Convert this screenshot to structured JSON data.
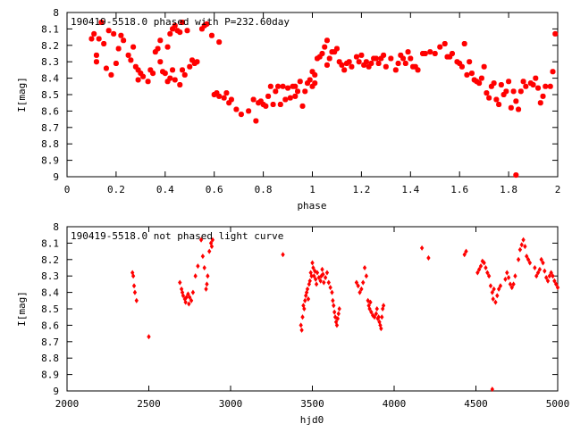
{
  "chart_data": [
    {
      "type": "scatter",
      "title": "190419-5518.0 phased with P=232.60day",
      "xlabel": "phase",
      "ylabel": "I[mag]",
      "xlim": [
        0,
        2
      ],
      "ylim": [
        9,
        8
      ],
      "y_inverted": true,
      "grid": false,
      "marker_color": "#ff0000",
      "x_ticks": [
        0,
        0.2,
        0.4,
        0.6,
        0.8,
        1,
        1.2,
        1.4,
        1.6,
        1.8,
        2
      ],
      "x_tick_labels": [
        "0",
        "0.2",
        "0.4",
        "0.6",
        "0.8",
        "1",
        "1.2",
        "1.4",
        "1.6",
        "1.8",
        "2"
      ],
      "y_ticks": [
        8,
        8.1,
        8.2,
        8.3,
        8.4,
        8.5,
        8.6,
        8.7,
        8.8,
        8.9,
        9
      ],
      "y_tick_labels": [
        "8",
        "8.1",
        "8.2",
        "8.3",
        "8.4",
        "8.5",
        "8.6",
        "8.7",
        "8.8",
        "8.9",
        "9"
      ],
      "points": [
        [
          0.1,
          8.16
        ],
        [
          0.11,
          8.13
        ],
        [
          0.12,
          8.26
        ],
        [
          0.12,
          8.3
        ],
        [
          0.13,
          8.16
        ],
        [
          0.14,
          8.06
        ],
        [
          0.15,
          8.19
        ],
        [
          0.16,
          8.34
        ],
        [
          0.17,
          8.11
        ],
        [
          0.18,
          8.38
        ],
        [
          0.19,
          8.13
        ],
        [
          0.2,
          8.31
        ],
        [
          0.21,
          8.22
        ],
        [
          0.22,
          8.14
        ],
        [
          0.23,
          8.17
        ],
        [
          0.25,
          8.26
        ],
        [
          0.26,
          8.29
        ],
        [
          0.27,
          8.21
        ],
        [
          0.28,
          8.33
        ],
        [
          0.29,
          8.35
        ],
        [
          0.29,
          8.41
        ],
        [
          0.3,
          8.37
        ],
        [
          0.31,
          8.39
        ],
        [
          0.33,
          8.42
        ],
        [
          0.34,
          8.35
        ],
        [
          0.35,
          8.37
        ],
        [
          0.36,
          8.24
        ],
        [
          0.37,
          8.22
        ],
        [
          0.38,
          8.17
        ],
        [
          0.38,
          8.3
        ],
        [
          0.39,
          8.36
        ],
        [
          0.4,
          8.37
        ],
        [
          0.41,
          8.42
        ],
        [
          0.41,
          8.21
        ],
        [
          0.42,
          8.13
        ],
        [
          0.42,
          8.4
        ],
        [
          0.43,
          8.1
        ],
        [
          0.43,
          8.35
        ],
        [
          0.44,
          8.08
        ],
        [
          0.44,
          8.41
        ],
        [
          0.45,
          8.11
        ],
        [
          0.46,
          8.44
        ],
        [
          0.46,
          8.12
        ],
        [
          0.47,
          8.35
        ],
        [
          0.47,
          8.06
        ],
        [
          0.48,
          8.38
        ],
        [
          0.49,
          8.11
        ],
        [
          0.5,
          8.33
        ],
        [
          0.51,
          8.29
        ],
        [
          0.52,
          8.31
        ],
        [
          0.53,
          8.3
        ],
        [
          0.55,
          8.1
        ],
        [
          0.56,
          8.08
        ],
        [
          0.57,
          8.07
        ],
        [
          0.59,
          8.14
        ],
        [
          0.6,
          8.5
        ],
        [
          0.61,
          8.49
        ],
        [
          0.62,
          8.51
        ],
        [
          0.62,
          8.18
        ],
        [
          0.64,
          8.52
        ],
        [
          0.65,
          8.49
        ],
        [
          0.66,
          8.55
        ],
        [
          0.67,
          8.53
        ],
        [
          0.69,
          8.59
        ],
        [
          0.71,
          8.62
        ],
        [
          0.74,
          8.6
        ],
        [
          0.76,
          8.53
        ],
        [
          0.77,
          8.66
        ],
        [
          0.78,
          8.55
        ],
        [
          0.79,
          8.54
        ],
        [
          0.8,
          8.56
        ],
        [
          0.81,
          8.57
        ],
        [
          0.82,
          8.51
        ],
        [
          0.83,
          8.45
        ],
        [
          0.84,
          8.56
        ],
        [
          0.85,
          8.48
        ],
        [
          0.86,
          8.45
        ],
        [
          0.87,
          8.56
        ],
        [
          0.88,
          8.45
        ],
        [
          0.89,
          8.53
        ],
        [
          0.9,
          8.46
        ],
        [
          0.91,
          8.52
        ],
        [
          0.92,
          8.45
        ],
        [
          0.93,
          8.45
        ],
        [
          0.93,
          8.51
        ],
        [
          0.94,
          8.48
        ],
        [
          0.95,
          8.42
        ],
        [
          0.96,
          8.57
        ],
        [
          0.97,
          8.48
        ],
        [
          0.98,
          8.43
        ],
        [
          0.99,
          8.41
        ],
        [
          1.0,
          8.36
        ],
        [
          1.0,
          8.45
        ],
        [
          1.01,
          8.43
        ],
        [
          1.01,
          8.38
        ],
        [
          1.02,
          8.28
        ],
        [
          1.03,
          8.27
        ],
        [
          1.04,
          8.25
        ],
        [
          1.05,
          8.21
        ],
        [
          1.06,
          8.17
        ],
        [
          1.06,
          8.32
        ],
        [
          1.07,
          8.28
        ],
        [
          1.08,
          8.24
        ],
        [
          1.09,
          8.24
        ],
        [
          1.1,
          8.22
        ],
        [
          1.11,
          8.3
        ],
        [
          1.12,
          8.32
        ],
        [
          1.13,
          8.35
        ],
        [
          1.14,
          8.31
        ],
        [
          1.15,
          8.3
        ],
        [
          1.16,
          8.33
        ],
        [
          1.18,
          8.27
        ],
        [
          1.19,
          8.3
        ],
        [
          1.2,
          8.26
        ],
        [
          1.21,
          8.32
        ],
        [
          1.22,
          8.3
        ],
        [
          1.23,
          8.33
        ],
        [
          1.24,
          8.31
        ],
        [
          1.25,
          8.28
        ],
        [
          1.26,
          8.28
        ],
        [
          1.27,
          8.31
        ],
        [
          1.28,
          8.28
        ],
        [
          1.29,
          8.26
        ],
        [
          1.3,
          8.33
        ],
        [
          1.32,
          8.28
        ],
        [
          1.34,
          8.35
        ],
        [
          1.35,
          8.31
        ],
        [
          1.36,
          8.26
        ],
        [
          1.37,
          8.28
        ],
        [
          1.38,
          8.31
        ],
        [
          1.39,
          8.24
        ],
        [
          1.4,
          8.28
        ],
        [
          1.41,
          8.33
        ],
        [
          1.42,
          8.33
        ],
        [
          1.43,
          8.35
        ],
        [
          1.45,
          8.25
        ],
        [
          1.46,
          8.25
        ],
        [
          1.48,
          8.24
        ],
        [
          1.5,
          8.25
        ],
        [
          1.52,
          8.21
        ],
        [
          1.54,
          8.19
        ],
        [
          1.55,
          8.27
        ],
        [
          1.56,
          8.27
        ],
        [
          1.57,
          8.25
        ],
        [
          1.59,
          8.3
        ],
        [
          1.6,
          8.31
        ],
        [
          1.61,
          8.33
        ],
        [
          1.62,
          8.19
        ],
        [
          1.63,
          8.38
        ],
        [
          1.64,
          8.3
        ],
        [
          1.65,
          8.37
        ],
        [
          1.66,
          8.41
        ],
        [
          1.67,
          8.42
        ],
        [
          1.68,
          8.43
        ],
        [
          1.69,
          8.4
        ],
        [
          1.7,
          8.33
        ],
        [
          1.71,
          8.49
        ],
        [
          1.72,
          8.52
        ],
        [
          1.73,
          8.45
        ],
        [
          1.74,
          8.43
        ],
        [
          1.75,
          8.53
        ],
        [
          1.76,
          8.56
        ],
        [
          1.77,
          8.44
        ],
        [
          1.78,
          8.5
        ],
        [
          1.79,
          8.48
        ],
        [
          1.8,
          8.42
        ],
        [
          1.81,
          8.58
        ],
        [
          1.82,
          8.48
        ],
        [
          1.83,
          8.54
        ],
        [
          1.84,
          8.59
        ],
        [
          1.85,
          8.48
        ],
        [
          1.86,
          8.42
        ],
        [
          1.87,
          8.45
        ],
        [
          1.89,
          8.43
        ],
        [
          1.9,
          8.44
        ],
        [
          1.91,
          8.4
        ],
        [
          1.92,
          8.46
        ],
        [
          1.93,
          8.55
        ],
        [
          1.94,
          8.51
        ],
        [
          1.95,
          8.45
        ],
        [
          1.97,
          8.45
        ],
        [
          1.98,
          8.36
        ],
        [
          1.99,
          8.13
        ],
        [
          1.83,
          8.99
        ]
      ]
    },
    {
      "type": "scatter",
      "title": "190419-5518.0 not phased light curve",
      "xlabel": "hjd0",
      "ylabel": "I[mag]",
      "xlim": [
        2000,
        5000
      ],
      "ylim": [
        9,
        8
      ],
      "y_inverted": true,
      "grid": false,
      "marker_color": "#ff0000",
      "x_ticks": [
        2000,
        2500,
        3000,
        3500,
        4000,
        4500,
        5000
      ],
      "x_tick_labels": [
        "2000",
        "2500",
        "3000",
        "3500",
        "4000",
        "4500",
        "5000"
      ],
      "y_ticks": [
        8,
        8.1,
        8.2,
        8.3,
        8.4,
        8.5,
        8.6,
        8.7,
        8.8,
        8.9,
        9
      ],
      "y_tick_labels": [
        "8",
        "8.1",
        "8.2",
        "8.3",
        "8.4",
        "8.5",
        "8.6",
        "8.7",
        "8.8",
        "8.9",
        "9"
      ],
      "points": [
        [
          2400,
          8.28
        ],
        [
          2405,
          8.3
        ],
        [
          2410,
          8.36
        ],
        [
          2415,
          8.4
        ],
        [
          2425,
          8.45
        ],
        [
          2500,
          8.67
        ],
        [
          2690,
          8.34
        ],
        [
          2700,
          8.38
        ],
        [
          2705,
          8.4
        ],
        [
          2710,
          8.42
        ],
        [
          2720,
          8.44
        ],
        [
          2725,
          8.46
        ],
        [
          2730,
          8.43
        ],
        [
          2740,
          8.41
        ],
        [
          2745,
          8.47
        ],
        [
          2750,
          8.43
        ],
        [
          2760,
          8.45
        ],
        [
          2770,
          8.4
        ],
        [
          2785,
          8.3
        ],
        [
          2800,
          8.24
        ],
        [
          2820,
          8.08
        ],
        [
          2830,
          8.18
        ],
        [
          2840,
          8.25
        ],
        [
          2850,
          8.38
        ],
        [
          2855,
          8.35
        ],
        [
          2860,
          8.3
        ],
        [
          2870,
          8.15
        ],
        [
          2880,
          8.1
        ],
        [
          2885,
          8.12
        ],
        [
          2890,
          8.08
        ],
        [
          3320,
          8.17
        ],
        [
          3430,
          8.6
        ],
        [
          3435,
          8.63
        ],
        [
          3440,
          8.55
        ],
        [
          3445,
          8.48
        ],
        [
          3450,
          8.5
        ],
        [
          3455,
          8.45
        ],
        [
          3460,
          8.42
        ],
        [
          3465,
          8.4
        ],
        [
          3470,
          8.38
        ],
        [
          3475,
          8.44
        ],
        [
          3480,
          8.35
        ],
        [
          3485,
          8.33
        ],
        [
          3490,
          8.28
        ],
        [
          3495,
          8.3
        ],
        [
          3500,
          8.22
        ],
        [
          3505,
          8.25
        ],
        [
          3510,
          8.3
        ],
        [
          3515,
          8.27
        ],
        [
          3520,
          8.32
        ],
        [
          3525,
          8.35
        ],
        [
          3530,
          8.28
        ],
        [
          3540,
          8.31
        ],
        [
          3550,
          8.33
        ],
        [
          3555,
          8.3
        ],
        [
          3560,
          8.26
        ],
        [
          3565,
          8.29
        ],
        [
          3570,
          8.34
        ],
        [
          3580,
          8.31
        ],
        [
          3590,
          8.28
        ],
        [
          3600,
          8.34
        ],
        [
          3610,
          8.37
        ],
        [
          3620,
          8.4
        ],
        [
          3625,
          8.45
        ],
        [
          3630,
          8.48
        ],
        [
          3635,
          8.52
        ],
        [
          3640,
          8.55
        ],
        [
          3645,
          8.58
        ],
        [
          3650,
          8.6
        ],
        [
          3655,
          8.56
        ],
        [
          3660,
          8.53
        ],
        [
          3665,
          8.5
        ],
        [
          3770,
          8.34
        ],
        [
          3780,
          8.36
        ],
        [
          3790,
          8.4
        ],
        [
          3800,
          8.38
        ],
        [
          3810,
          8.34
        ],
        [
          3820,
          8.25
        ],
        [
          3830,
          8.3
        ],
        [
          3840,
          8.45
        ],
        [
          3845,
          8.48
        ],
        [
          3850,
          8.5
        ],
        [
          3855,
          8.46
        ],
        [
          3860,
          8.52
        ],
        [
          3870,
          8.54
        ],
        [
          3880,
          8.55
        ],
        [
          3890,
          8.53
        ],
        [
          3895,
          8.5
        ],
        [
          3900,
          8.56
        ],
        [
          3905,
          8.55
        ],
        [
          3910,
          8.58
        ],
        [
          3915,
          8.6
        ],
        [
          3920,
          8.62
        ],
        [
          3925,
          8.55
        ],
        [
          3930,
          8.5
        ],
        [
          3935,
          8.48
        ],
        [
          4170,
          8.13
        ],
        [
          4210,
          8.19
        ],
        [
          4430,
          8.17
        ],
        [
          4440,
          8.15
        ],
        [
          4510,
          8.28
        ],
        [
          4520,
          8.26
        ],
        [
          4530,
          8.24
        ],
        [
          4540,
          8.21
        ],
        [
          4550,
          8.22
        ],
        [
          4560,
          8.25
        ],
        [
          4570,
          8.28
        ],
        [
          4580,
          8.3
        ],
        [
          4590,
          8.36
        ],
        [
          4600,
          8.4
        ],
        [
          4605,
          8.44
        ],
        [
          4610,
          8.38
        ],
        [
          4620,
          8.46
        ],
        [
          4630,
          8.42
        ],
        [
          4640,
          8.38
        ],
        [
          4650,
          8.36
        ],
        [
          4680,
          8.32
        ],
        [
          4690,
          8.28
        ],
        [
          4700,
          8.31
        ],
        [
          4710,
          8.35
        ],
        [
          4720,
          8.37
        ],
        [
          4730,
          8.35
        ],
        [
          4740,
          8.3
        ],
        [
          4760,
          8.2
        ],
        [
          4770,
          8.14
        ],
        [
          4780,
          8.11
        ],
        [
          4790,
          8.08
        ],
        [
          4800,
          8.12
        ],
        [
          4810,
          8.18
        ],
        [
          4820,
          8.2
        ],
        [
          4830,
          8.22
        ],
        [
          4860,
          8.25
        ],
        [
          4870,
          8.3
        ],
        [
          4880,
          8.28
        ],
        [
          4890,
          8.26
        ],
        [
          4900,
          8.2
        ],
        [
          4910,
          8.22
        ],
        [
          4920,
          8.27
        ],
        [
          4930,
          8.31
        ],
        [
          4940,
          8.33
        ],
        [
          4950,
          8.3
        ],
        [
          4960,
          8.28
        ],
        [
          4970,
          8.3
        ],
        [
          4980,
          8.33
        ],
        [
          4990,
          8.35
        ],
        [
          5000,
          8.37
        ],
        [
          4600,
          8.99
        ]
      ]
    }
  ]
}
